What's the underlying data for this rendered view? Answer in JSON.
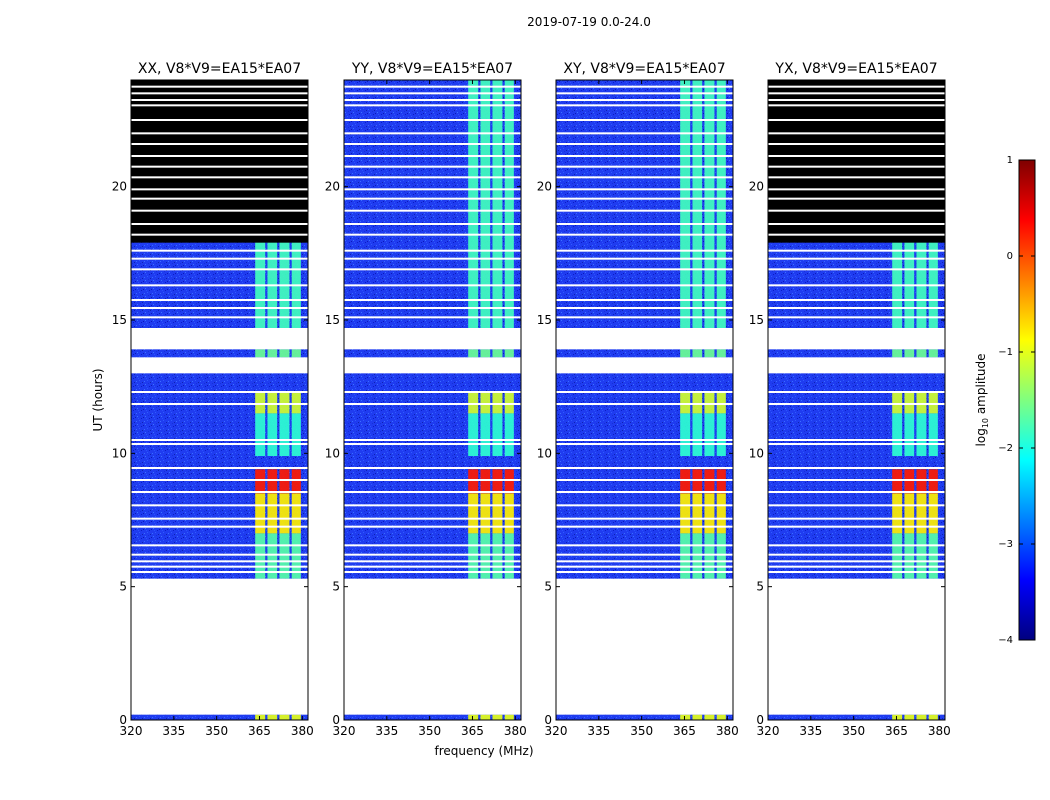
{
  "figure_title": "2019-07-19 0.0-24.0",
  "chart_data": {
    "type": "heatmap",
    "ylabel": "UT (hours)",
    "xlabel": "frequency (MHz)",
    "xlim": [
      320,
      382
    ],
    "ylim": [
      0,
      24
    ],
    "x_ticks": [
      320,
      335,
      350,
      365,
      380
    ],
    "x_tick_labels": [
      "320",
      "335",
      "350",
      "365",
      "380"
    ],
    "y_ticks": [
      0,
      5,
      10,
      15,
      20
    ],
    "y_tick_labels": [
      "0",
      "5",
      "10",
      "15",
      "20"
    ],
    "colorbar": {
      "label": "log10 amplitude",
      "label_main": "log",
      "label_sub": "10",
      "label_rest": " amplitude",
      "range": [
        -4,
        1
      ],
      "ticks": [
        1,
        0,
        -1,
        -2,
        -3,
        -4
      ],
      "tick_labels": [
        "1",
        "0",
        "−1",
        "−2",
        "−3",
        "−4"
      ],
      "colormap": "jet"
    },
    "panels": [
      {
        "title": "XX, V8*V9=EA15*EA07",
        "upper_flagged": true,
        "flagged_hours": [
          [
            17.9,
            24.0
          ]
        ]
      },
      {
        "title": "YY, V8*V9=EA15*EA07",
        "upper_flagged": false,
        "flagged_hours": []
      },
      {
        "title": "XY, V8*V9=EA15*EA07",
        "upper_flagged": false,
        "flagged_hours": []
      },
      {
        "title": "YX, V8*V9=EA15*EA07",
        "upper_flagged": true,
        "flagged_hours": [
          [
            17.9,
            24.0
          ]
        ]
      }
    ],
    "gap_hours": [
      [
        0.2,
        5.3
      ],
      [
        13.0,
        13.6
      ],
      [
        13.9,
        14.7
      ]
    ],
    "white_stripe_hours": [
      5.55,
      5.75,
      5.95,
      6.2,
      6.55,
      7.25,
      7.55,
      8.05,
      8.55,
      9.0,
      9.45,
      10.35,
      10.5,
      11.85,
      12.3,
      15.1,
      15.45,
      15.75,
      16.3,
      16.9,
      17.3,
      17.6,
      18.2,
      18.6,
      19.1,
      19.55,
      19.9,
      20.35,
      20.75,
      21.15,
      21.6,
      22.0,
      22.5,
      23.05,
      23.25,
      23.5,
      23.75
    ],
    "rfi_band_mhz": [
      363,
      379
    ],
    "rfi_channels_mhz": [
      [
        363.5,
        367.0
      ],
      [
        367.8,
        371.2
      ],
      [
        372.0,
        375.5
      ],
      [
        376.3,
        379.5
      ]
    ],
    "intensity_by_time": [
      {
        "hours": [
          0.0,
          0.2
        ],
        "level": -1.0
      },
      {
        "hours": [
          5.3,
          7.0
        ],
        "level": -1.7
      },
      {
        "hours": [
          7.0,
          8.5
        ],
        "level": -0.8
      },
      {
        "hours": [
          8.5,
          9.4
        ],
        "level": 0.25
      },
      {
        "hours": [
          9.9,
          11.5
        ],
        "level": -1.9
      },
      {
        "hours": [
          11.5,
          12.3
        ],
        "level": -1.1
      },
      {
        "hours": [
          13.6,
          13.9
        ],
        "level": -1.6
      },
      {
        "hours": [
          14.7,
          24.0
        ],
        "level": -1.8
      }
    ],
    "background_level": -3.3
  }
}
